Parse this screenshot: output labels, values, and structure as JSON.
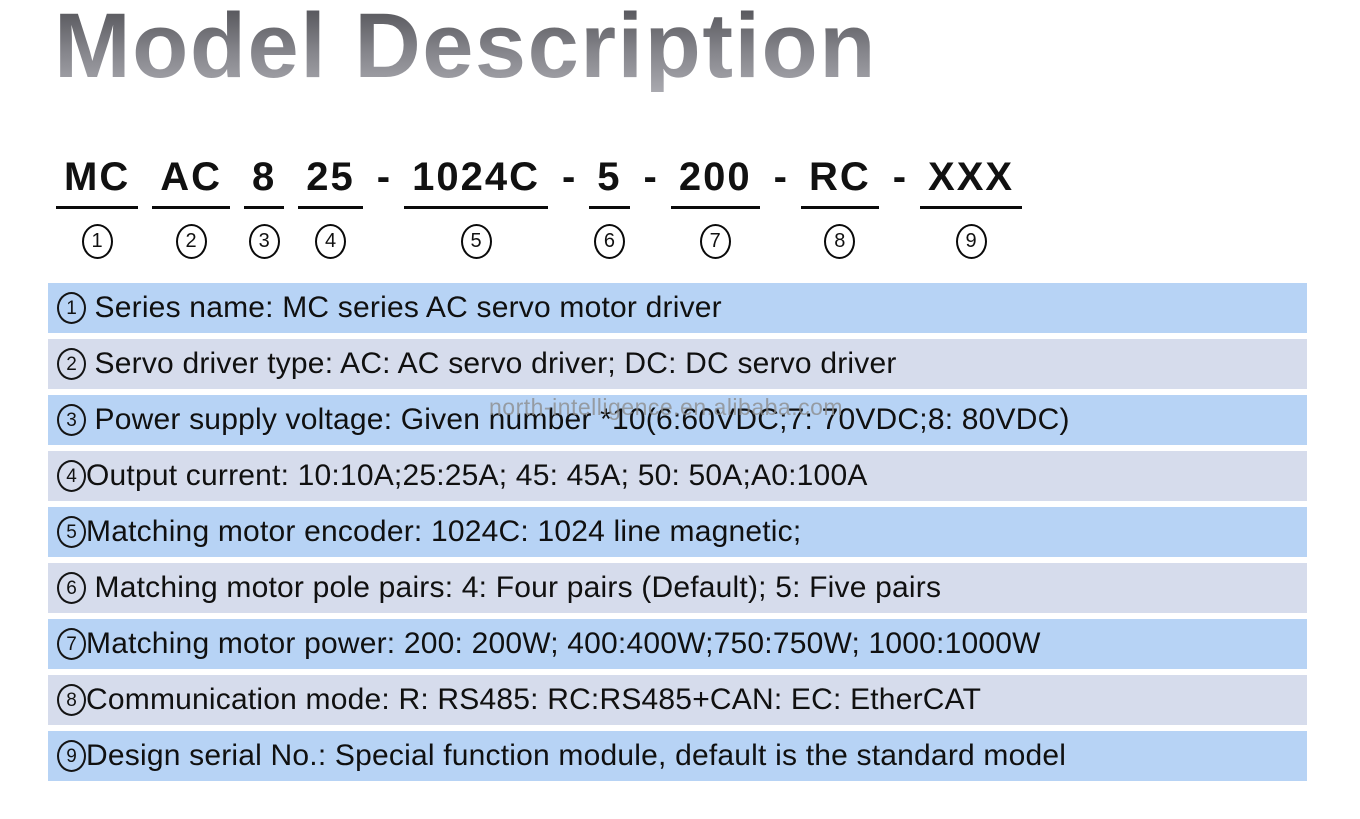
{
  "page": {
    "title": "Model Description"
  },
  "watermark": {
    "text": "north-intelligence.en.alibaba.com"
  },
  "model_code": {
    "segments": [
      {
        "text": "MC",
        "num": "1"
      },
      {
        "text": "AC",
        "num": "2"
      },
      {
        "text": "8",
        "num": "3"
      },
      {
        "text": "25",
        "num": "4"
      },
      {
        "text": "-"
      },
      {
        "text": "1024C",
        "num": "5"
      },
      {
        "text": "-"
      },
      {
        "text": "5",
        "num": "6"
      },
      {
        "text": "-"
      },
      {
        "text": "200",
        "num": "7"
      },
      {
        "text": "-"
      },
      {
        "text": "RC",
        "num": "8"
      },
      {
        "text": "-"
      },
      {
        "text": "XXX",
        "num": "9"
      }
    ]
  },
  "descriptions": {
    "rows": [
      {
        "num": "1",
        "text": " Series name: MC series AC servo motor driver"
      },
      {
        "num": "2",
        "text": " Servo driver type: AC: AC servo driver; DC: DC servo driver"
      },
      {
        "num": "3",
        "text": " Power supply voltage: Given number *10(6:60VDC;7: 70VDC;8: 80VDC)"
      },
      {
        "num": "4",
        "text": "Output current: 10:10A;25:25A; 45: 45A; 50: 50A;A0:100A"
      },
      {
        "num": "5",
        "text": "Matching motor encoder: 1024C: 1024 line magnetic;"
      },
      {
        "num": "6",
        "text": " Matching motor pole pairs: 4: Four pairs (Default); 5: Five pairs"
      },
      {
        "num": "7",
        "text": "Matching motor power: 200: 200W; 400:400W;750:750W; 1000:1000W"
      },
      {
        "num": "8",
        "text": "Communication mode: R: RS485: RC:RS485+CAN: EC: EtherCAT"
      },
      {
        "num": "9",
        "text": "Design serial No.: Special function module, default is the standard model"
      }
    ]
  },
  "colors": {
    "row_odd_bg": "#b7d3f5",
    "row_even_bg": "#d6dcec",
    "title_gradient_top": "#4e4e53",
    "title_gradient_bottom": "#a9a9af",
    "text": "#111111",
    "watermark": "#8c8c8c"
  }
}
